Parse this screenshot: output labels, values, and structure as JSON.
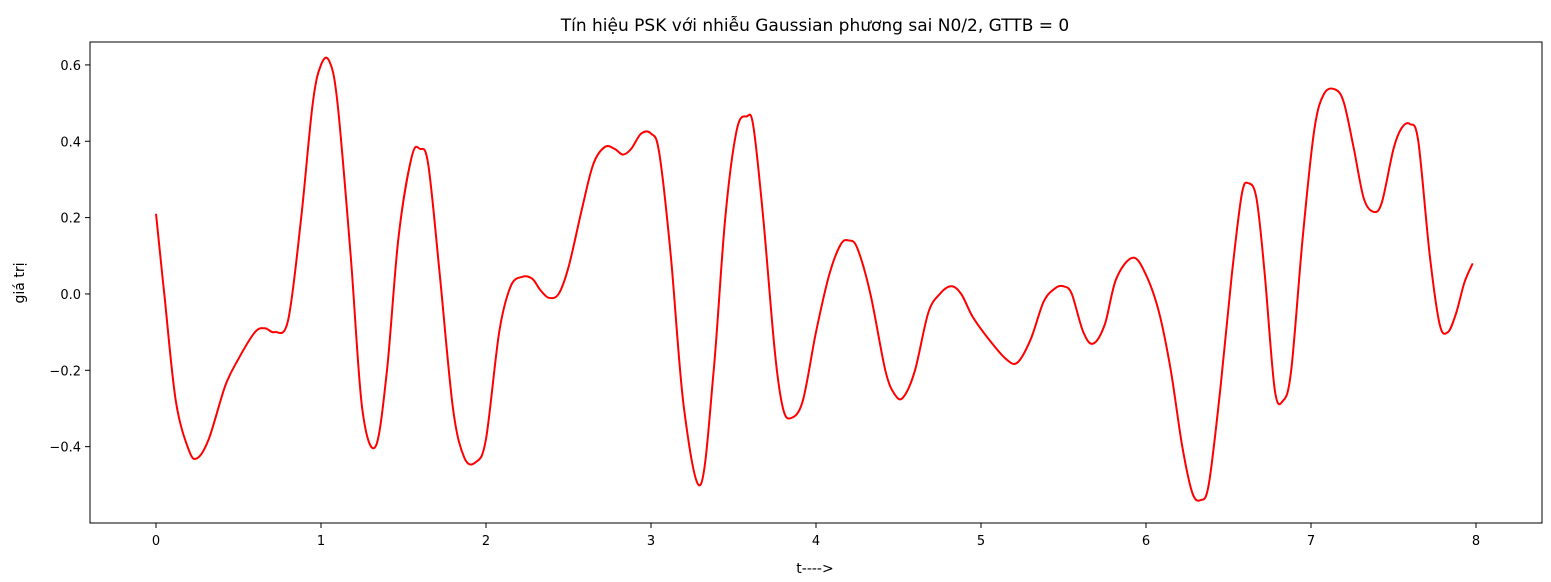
{
  "chart_data": {
    "type": "line",
    "title": "Tín hiệu PSK với nhiễu Gaussian phương sai N0/2, GTTB = 0",
    "xlabel": "t---->",
    "ylabel": "giá trị",
    "xlim": [
      -0.4,
      8.4
    ],
    "ylim": [
      -0.6,
      0.66
    ],
    "grid": false,
    "x_ticks": [
      0,
      1,
      2,
      3,
      4,
      5,
      6,
      7,
      8
    ],
    "x_tick_labels": [
      "0",
      "1",
      "2",
      "3",
      "4",
      "5",
      "6",
      "7",
      "8"
    ],
    "y_ticks": [
      -0.4,
      -0.2,
      0.0,
      0.2,
      0.4,
      0.6
    ],
    "y_tick_labels": [
      "−0.4",
      "−0.2",
      "0.0",
      "0.2",
      "0.4",
      "0.6"
    ],
    "series": [
      {
        "color": "#ff0000",
        "x": [
          0.0,
          0.05,
          0.12,
          0.2,
          0.25,
          0.32,
          0.42,
          0.5,
          0.6,
          0.66,
          0.72,
          0.8,
          0.88,
          0.95,
          1.0,
          1.05,
          1.1,
          1.18,
          1.25,
          1.33,
          1.4,
          1.47,
          1.55,
          1.6,
          1.65,
          1.72,
          1.8,
          1.87,
          1.94,
          2.0,
          2.08,
          2.15,
          2.22,
          2.28,
          2.33,
          2.38,
          2.44,
          2.5,
          2.58,
          2.65,
          2.72,
          2.78,
          2.83,
          2.88,
          2.94,
          3.0,
          3.05,
          3.12,
          3.2,
          3.3,
          3.38,
          3.45,
          3.52,
          3.58,
          3.62,
          3.68,
          3.75,
          3.8,
          3.85,
          3.92,
          4.0,
          4.08,
          4.15,
          4.2,
          4.25,
          4.33,
          4.42,
          4.48,
          4.53,
          4.6,
          4.68,
          4.75,
          4.82,
          4.88,
          4.95,
          5.05,
          5.15,
          5.22,
          5.3,
          5.38,
          5.45,
          5.5,
          5.55,
          5.62,
          5.68,
          5.75,
          5.82,
          5.92,
          6.0,
          6.08,
          6.15,
          6.22,
          6.28,
          6.33,
          6.38,
          6.45,
          6.52,
          6.58,
          6.62,
          6.67,
          6.72,
          6.78,
          6.83,
          6.88,
          6.95,
          7.02,
          7.08,
          7.15,
          7.2,
          7.26,
          7.32,
          7.38,
          7.43,
          7.5,
          7.55,
          7.6,
          7.65,
          7.72,
          7.78,
          7.83,
          7.88,
          7.93,
          7.98
        ],
        "y": [
          0.21,
          0.0,
          -0.28,
          -0.41,
          -0.43,
          -0.38,
          -0.24,
          -0.17,
          -0.1,
          -0.09,
          -0.1,
          -0.07,
          0.2,
          0.5,
          0.6,
          0.61,
          0.5,
          0.1,
          -0.3,
          -0.4,
          -0.2,
          0.15,
          0.36,
          0.38,
          0.34,
          0.05,
          -0.3,
          -0.43,
          -0.44,
          -0.38,
          -0.1,
          0.02,
          0.045,
          0.04,
          0.01,
          -0.01,
          0.0,
          0.07,
          0.22,
          0.34,
          0.385,
          0.38,
          0.365,
          0.38,
          0.42,
          0.42,
          0.37,
          0.1,
          -0.3,
          -0.5,
          -0.2,
          0.2,
          0.43,
          0.465,
          0.44,
          0.2,
          -0.15,
          -0.3,
          -0.325,
          -0.28,
          -0.1,
          0.05,
          0.13,
          0.14,
          0.12,
          0.0,
          -0.2,
          -0.265,
          -0.27,
          -0.2,
          -0.05,
          0.0,
          0.02,
          0.0,
          -0.06,
          -0.12,
          -0.17,
          -0.18,
          -0.12,
          -0.02,
          0.015,
          0.02,
          0.0,
          -0.1,
          -0.13,
          -0.08,
          0.04,
          0.095,
          0.05,
          -0.05,
          -0.2,
          -0.4,
          -0.52,
          -0.54,
          -0.5,
          -0.25,
          0.05,
          0.26,
          0.29,
          0.25,
          0.05,
          -0.25,
          -0.28,
          -0.2,
          0.15,
          0.43,
          0.525,
          0.535,
          0.5,
          0.38,
          0.25,
          0.215,
          0.24,
          0.38,
          0.435,
          0.445,
          0.4,
          0.1,
          -0.08,
          -0.1,
          -0.05,
          0.03,
          0.08
        ]
      }
    ]
  }
}
